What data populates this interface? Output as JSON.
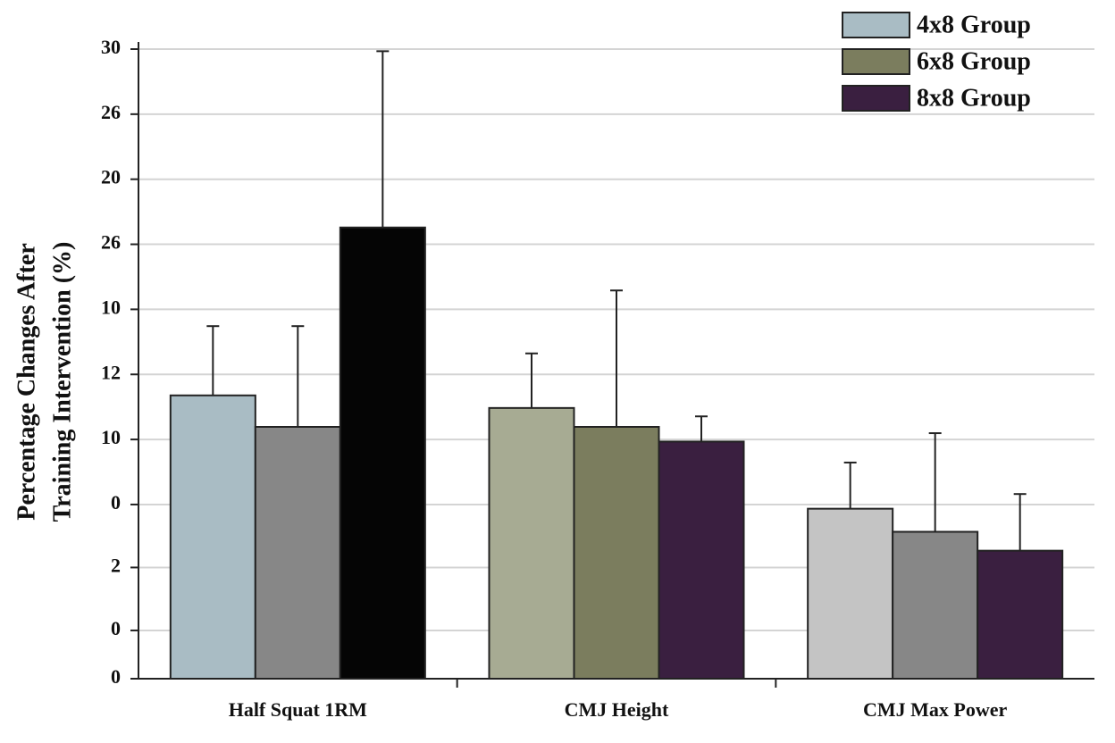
{
  "chart_data": {
    "type": "bar",
    "ylabel": [
      "Percentage Changes After",
      "Training Intervention (%)"
    ],
    "categories": [
      "Half Squat 1RM",
      "CMJ Height",
      "CMJ Max Power"
    ],
    "series": [
      {
        "name": "4x8 Group",
        "color": "#a9bcc4",
        "colors": [
          "#a9bcc4",
          "#a7ab93",
          "#c4c4c4"
        ],
        "values": [
          13.5,
          12.9,
          8.1
        ],
        "errors": [
          3.3,
          2.6,
          2.2
        ]
      },
      {
        "name": "6x8 Group",
        "color": "#7b7d5e",
        "colors": [
          "#878787",
          "#7b7d5e",
          "#878787"
        ],
        "values": [
          12.0,
          12.0,
          7.0
        ],
        "errors": [
          4.8,
          6.5,
          4.7
        ]
      },
      {
        "name": "8x8 Group",
        "color": "#3a1f40",
        "colors": [
          "#050505",
          "#3a1f40",
          "#3a1f40"
        ],
        "values": [
          21.5,
          11.3,
          6.1
        ],
        "errors": [
          8.4,
          1.2,
          2.7
        ]
      }
    ],
    "ylim": [
      0,
      30
    ],
    "yticks": [
      0,
      {
        "value": 2.3,
        "label": "0"
      },
      {
        "value": 5.3,
        "label": "2"
      },
      {
        "value": 8.3,
        "label": "0"
      },
      {
        "value": 11.4,
        "label": "10"
      },
      {
        "value": 14.5,
        "label": "12"
      },
      {
        "value": 17.6,
        "label": "10"
      },
      {
        "value": 20.7,
        "label": "26"
      },
      {
        "value": 23.8,
        "label": "20"
      },
      {
        "value": 26.9,
        "label": "26"
      },
      30
    ],
    "grid": true,
    "legend": "top-right"
  }
}
